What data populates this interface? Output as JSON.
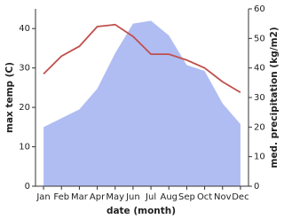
{
  "chart_data": {
    "type": "line-area",
    "x_label": "date (month)",
    "y_label": "max temp (C)",
    "y2_label": "med. precipitation (kg/m2)",
    "categories": [
      "Jan",
      "Feb",
      "Mar",
      "Apr",
      "May",
      "Jun",
      "Jul",
      "Aug",
      "Sep",
      "Oct",
      "Nov",
      "Dec"
    ],
    "series": [
      {
        "kind": "area",
        "axis": "y2",
        "color": "#b0bdf2",
        "values": [
          20,
          23,
          26,
          33,
          45,
          55,
          56,
          51,
          41,
          39,
          28,
          21
        ]
      },
      {
        "kind": "line",
        "axis": "y",
        "color": "#c0504d",
        "values": [
          28.5,
          33,
          35.5,
          40.5,
          41,
          38,
          33.5,
          33.5,
          32,
          30,
          26.5,
          23.8
        ]
      }
    ],
    "ylim": [
      0,
      45
    ],
    "yticks": [
      0,
      10,
      20,
      30,
      40
    ],
    "y2lim": [
      0,
      60
    ],
    "y2ticks": [
      0,
      10,
      20,
      30,
      40,
      50,
      60
    ]
  }
}
